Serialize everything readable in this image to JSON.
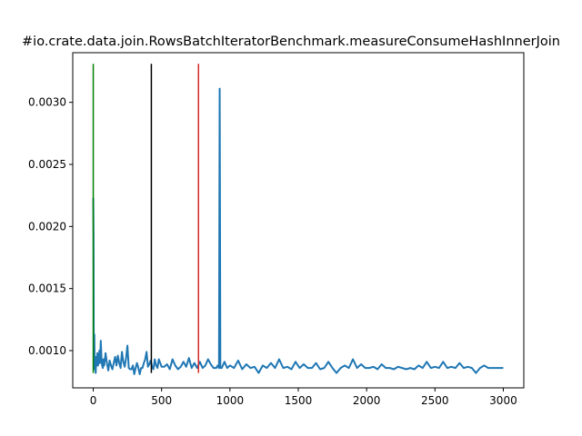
{
  "chart_data": {
    "type": "line",
    "title": "#io.crate.data.join.RowsBatchIteratorBenchmark.measureConsumeHashInnerJoin",
    "xlabel": "",
    "ylabel": "",
    "xlim": [
      -150,
      3150
    ],
    "ylim": [
      0.0007,
      0.0034
    ],
    "grid": false,
    "x_ticks": [
      0,
      500,
      1000,
      1500,
      2000,
      2500,
      3000
    ],
    "x_tick_labels": [
      "0",
      "500",
      "1000",
      "1500",
      "2000",
      "2500",
      "3000"
    ],
    "y_ticks": [
      0.001,
      0.0015,
      0.002,
      0.0025,
      0.003
    ],
    "y_tick_labels": [
      "0.0010",
      "0.0015",
      "0.0020",
      "0.0025",
      "0.0030"
    ],
    "vertical_lines": [
      {
        "x": 0,
        "y_range": [
          0.00082,
          0.00331
        ],
        "color": "#008000"
      },
      {
        "x": 425,
        "y_range": [
          0.00082,
          0.00331
        ],
        "color": "#000000"
      },
      {
        "x": 770,
        "y_range": [
          0.00082,
          0.00331
        ],
        "color": "#d62728"
      }
    ],
    "series": [
      {
        "color": "#1f77b4",
        "x": [
          0,
          2,
          4,
          6,
          8,
          10,
          14,
          18,
          22,
          26,
          30,
          35,
          40,
          45,
          50,
          55,
          60,
          65,
          70,
          75,
          80,
          90,
          100,
          110,
          120,
          130,
          140,
          150,
          160,
          170,
          180,
          190,
          200,
          210,
          220,
          230,
          240,
          250,
          260,
          270,
          280,
          290,
          300,
          310,
          320,
          330,
          340,
          350,
          360,
          370,
          380,
          390,
          400,
          410,
          420,
          430,
          440,
          450,
          460,
          470,
          480,
          500,
          520,
          540,
          560,
          580,
          600,
          620,
          640,
          660,
          680,
          700,
          720,
          740,
          760,
          780,
          800,
          820,
          840,
          860,
          880,
          900,
          910,
          920,
          925,
          930,
          940,
          960,
          980,
          1000,
          1030,
          1060,
          1090,
          1120,
          1150,
          1180,
          1210,
          1240,
          1270,
          1300,
          1330,
          1360,
          1390,
          1420,
          1450,
          1480,
          1510,
          1540,
          1570,
          1600,
          1630,
          1660,
          1690,
          1720,
          1750,
          1780,
          1810,
          1840,
          1870,
          1900,
          1930,
          1960,
          1990,
          2020,
          2050,
          2080,
          2110,
          2140,
          2170,
          2200,
          2230,
          2260,
          2290,
          2320,
          2350,
          2380,
          2410,
          2440,
          2470,
          2500,
          2530,
          2560,
          2590,
          2620,
          2650,
          2680,
          2710,
          2740,
          2770,
          2800,
          2830,
          2860,
          2890,
          2920,
          2950,
          2980,
          3000
        ],
        "y": [
          0.00223,
          0.00192,
          0.0009,
          0.00085,
          0.00113,
          0.00092,
          0.00088,
          0.00082,
          0.00095,
          0.00088,
          0.00098,
          0.00088,
          0.00092,
          0.001,
          0.0009,
          0.00108,
          0.00095,
          0.00088,
          0.00086,
          0.00093,
          0.00088,
          0.00098,
          0.0009,
          0.00084,
          0.00092,
          0.00088,
          0.00085,
          0.0009,
          0.00095,
          0.00088,
          0.00096,
          0.0009,
          0.00086,
          0.00099,
          0.00091,
          0.00087,
          0.00094,
          0.00104,
          0.00086,
          0.00085,
          0.00085,
          0.00088,
          0.00081,
          0.00086,
          0.0009,
          0.00086,
          0.00081,
          0.00086,
          0.00086,
          0.0009,
          0.00093,
          0.00099,
          0.00087,
          0.00089,
          0.00092,
          0.00087,
          0.00085,
          0.00093,
          0.00088,
          0.00086,
          0.00093,
          0.00087,
          0.00087,
          0.00089,
          0.00085,
          0.00093,
          0.00088,
          0.00085,
          0.00087,
          0.00091,
          0.00087,
          0.00094,
          0.00086,
          0.0009,
          0.00086,
          0.00091,
          0.00086,
          0.00088,
          0.00093,
          0.00089,
          0.00086,
          0.00086,
          0.00088,
          0.00086,
          0.00311,
          0.00086,
          0.00086,
          0.00091,
          0.00086,
          0.00088,
          0.00086,
          0.00092,
          0.00085,
          0.00089,
          0.00086,
          0.00087,
          0.00082,
          0.00088,
          0.00086,
          0.0009,
          0.00086,
          0.00093,
          0.00086,
          0.00087,
          0.00085,
          0.00091,
          0.00086,
          0.00089,
          0.00086,
          0.00086,
          0.0009,
          0.00085,
          0.00086,
          0.00091,
          0.00086,
          0.00082,
          0.00086,
          0.00088,
          0.00086,
          0.00093,
          0.00086,
          0.00089,
          0.00086,
          0.00086,
          0.00087,
          0.00085,
          0.00089,
          0.00086,
          0.00086,
          0.00085,
          0.00087,
          0.00086,
          0.00085,
          0.00086,
          0.00085,
          0.00088,
          0.00086,
          0.00091,
          0.00086,
          0.00087,
          0.00086,
          0.00091,
          0.00086,
          0.00087,
          0.00086,
          0.0009,
          0.00086,
          0.00087,
          0.00086,
          0.00082,
          0.00086,
          0.00088,
          0.00086,
          0.00086,
          0.00086,
          0.00086,
          0.00086
        ]
      }
    ]
  }
}
